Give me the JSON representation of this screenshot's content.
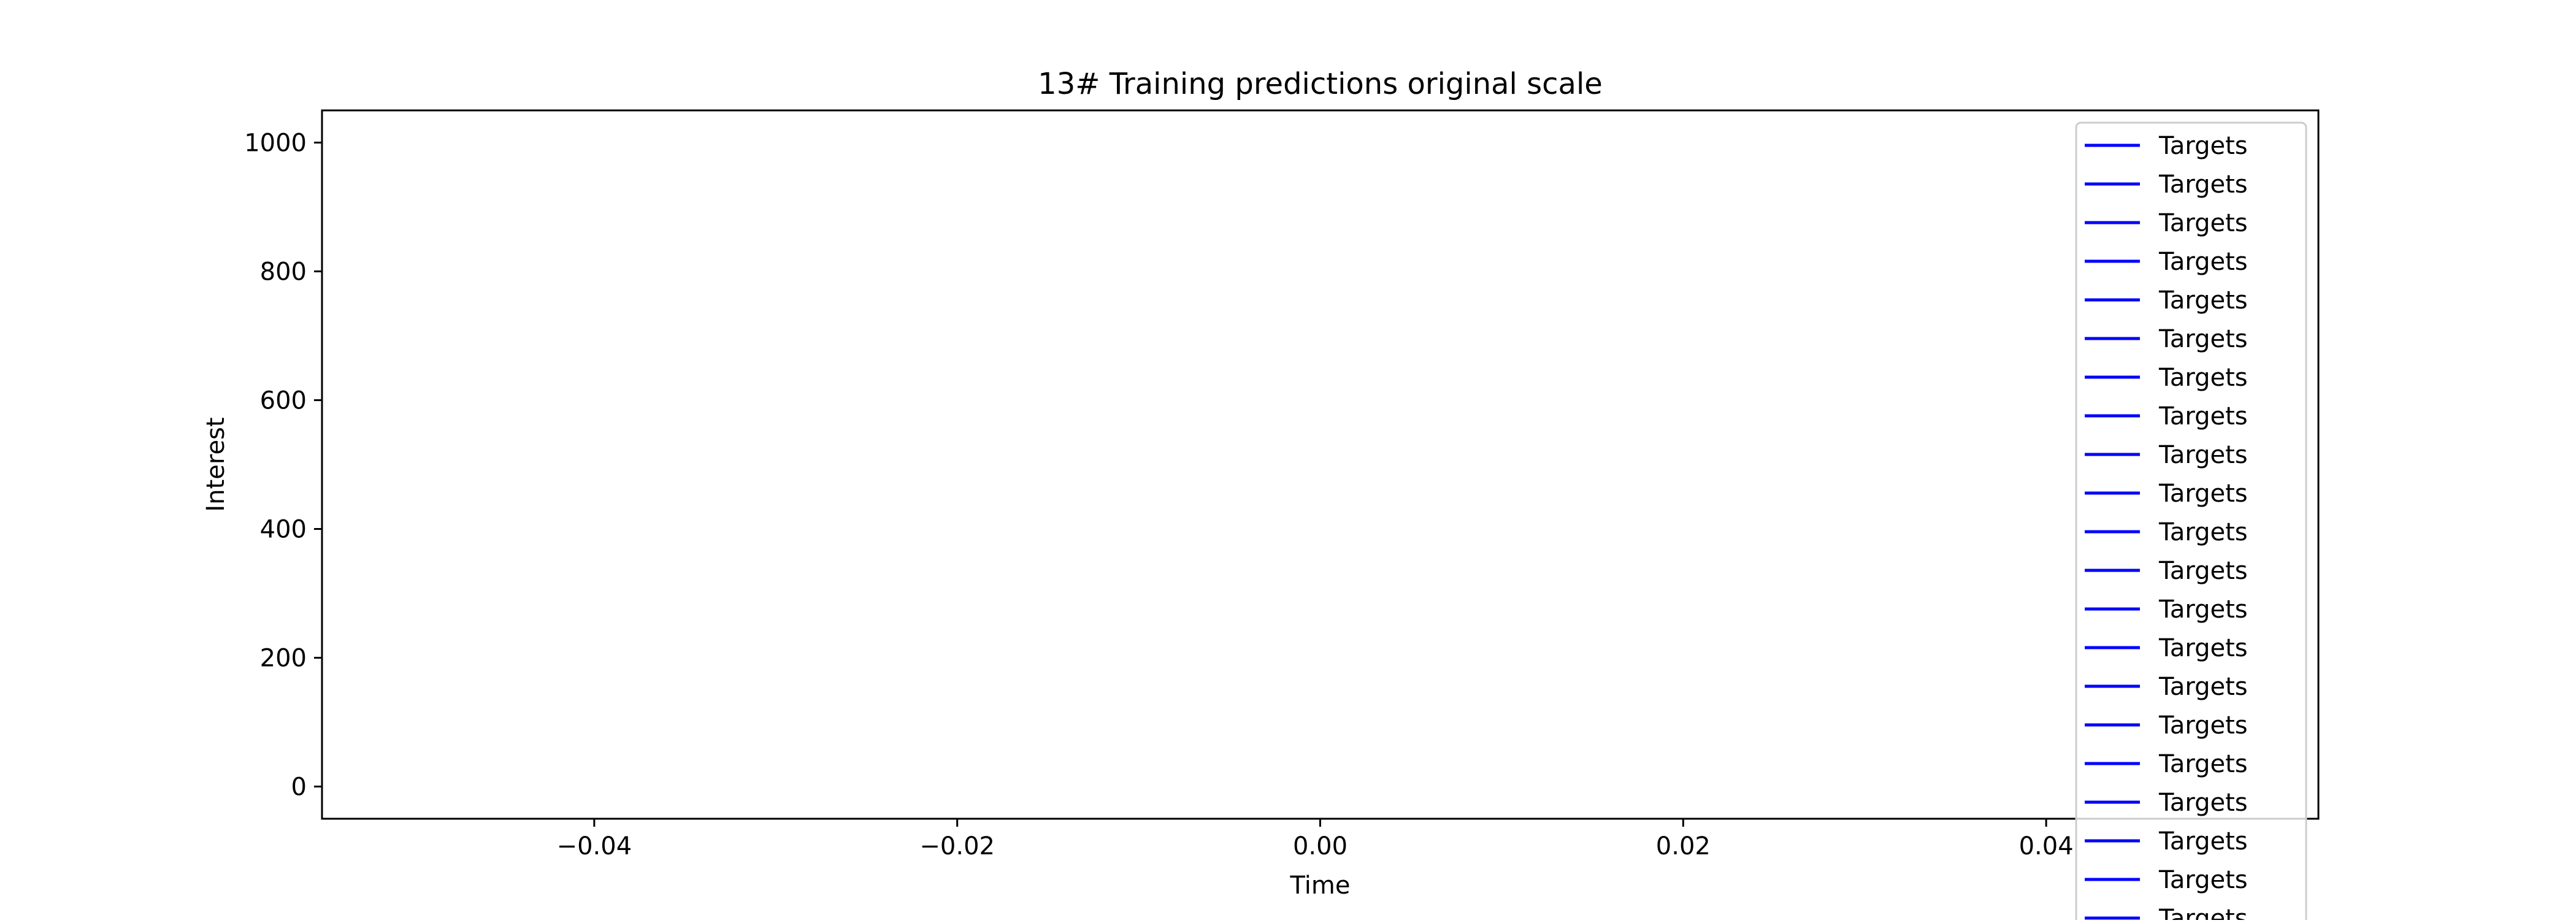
{
  "chart_data": {
    "type": "line",
    "title": "13# Training predictions original scale",
    "xlabel": "Time",
    "ylabel": "Interest",
    "xlim": [
      -0.055,
      0.055
    ],
    "ylim": [
      -50,
      1050
    ],
    "xticks": [
      -0.04,
      -0.02,
      0.0,
      0.02,
      0.04
    ],
    "xtick_labels": [
      "−0.04",
      "−0.02",
      "0.00",
      "0.02",
      "0.04"
    ],
    "yticks": [
      0,
      200,
      400,
      600,
      800,
      1000
    ],
    "ytick_labels": [
      "0",
      "200",
      "400",
      "600",
      "800",
      "1000"
    ],
    "grid": false,
    "legend_position": "top-right",
    "series_color": "#0000ff",
    "legend_entries": [
      "Targets",
      "Targets",
      "Targets",
      "Targets",
      "Targets",
      "Targets",
      "Targets",
      "Targets",
      "Targets",
      "Targets",
      "Targets",
      "Targets",
      "Targets",
      "Targets",
      "Targets",
      "Targets",
      "Targets",
      "Targets",
      "Targets",
      "Targets",
      "Targets"
    ],
    "series": []
  }
}
